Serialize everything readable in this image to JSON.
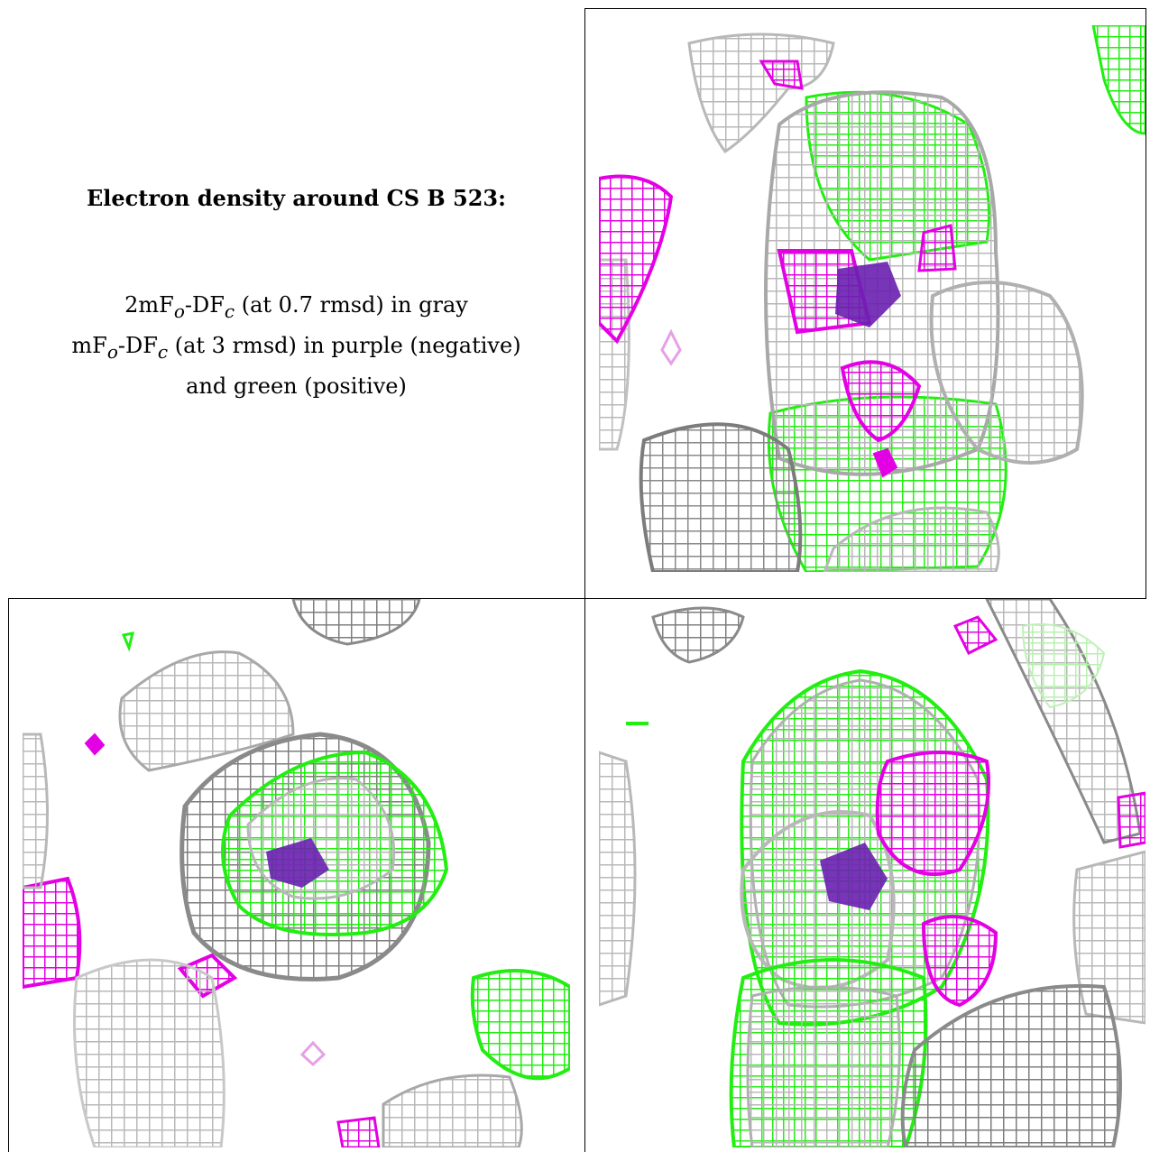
{
  "caption": {
    "title": "Electron density around CS B 523:",
    "line1": {
      "prefix": "2mF",
      "sub1": "o",
      "mid": "-DF",
      "sub2": "c",
      "suffix": " (at 0.7 rmsd) in gray"
    },
    "line2": {
      "prefix": "mF",
      "sub1": "o",
      "mid": "-DF",
      "sub2": "c",
      "suffix": " (at 3 rmsd) in purple (negative)"
    },
    "line3": "and green (positive)"
  },
  "colors": {
    "gray_mesh": "#b8b8b8",
    "dark_gray_mesh": "#8a8a8a",
    "negative_mesh": "#e400e4",
    "positive_mesh": "#22ee11",
    "atom": "#6a1fb0",
    "border": "#000000"
  },
  "panels": [
    {
      "name": "top-right-view",
      "icon": "electron-density-mesh"
    },
    {
      "name": "bottom-left-view",
      "icon": "electron-density-mesh"
    },
    {
      "name": "bottom-right-view",
      "icon": "electron-density-mesh"
    }
  ]
}
